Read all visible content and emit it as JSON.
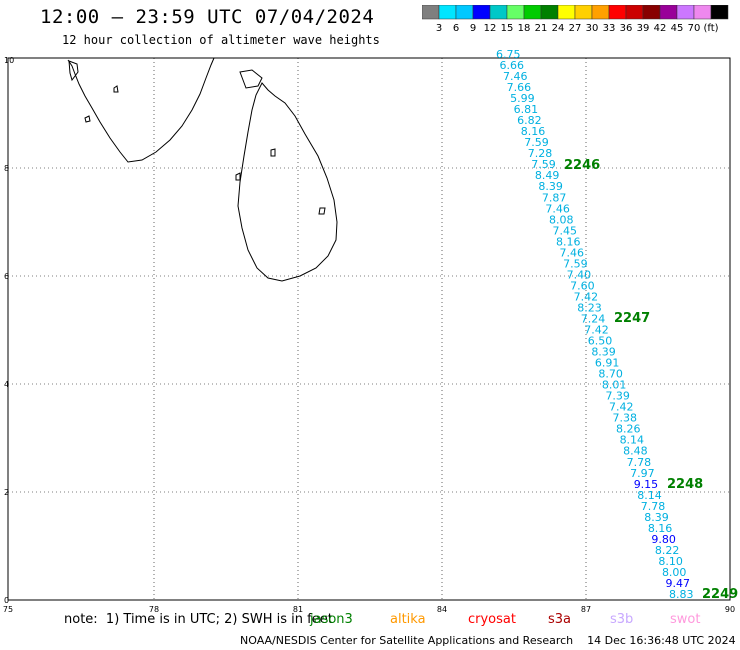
{
  "header": {
    "title": "12:00 – 23:59 UTC 07/04/2024",
    "subtitle": "12 hour collection of altimeter wave heights"
  },
  "colorbar": {
    "colors": [
      "#7f7f7f",
      "#00e5ff",
      "#00c8ff",
      "#0000ff",
      "#00c8c8",
      "#66ff66",
      "#00cc00",
      "#008000",
      "#ffff00",
      "#ffd000",
      "#ffa000",
      "#ff0000",
      "#cc0000",
      "#880000",
      "#990099",
      "#cc77ff",
      "#ee88ee",
      "#000000"
    ],
    "labels": [
      "3",
      "6",
      "9",
      "12",
      "15",
      "18",
      "21",
      "24",
      "27",
      "30",
      "33",
      "36",
      "39",
      "42",
      "45",
      "70",
      "(ft)"
    ]
  },
  "axes": {
    "x_ticks": [
      "75",
      "78",
      "81",
      "84",
      "87",
      "90"
    ],
    "y_ticks": [
      "10",
      "8",
      "6",
      "4",
      "2",
      "0"
    ]
  },
  "tracks": [
    {
      "label": "2246",
      "color": "#008000"
    },
    {
      "label": "2247",
      "color": "#008000"
    },
    {
      "label": "2248",
      "color": "#008000"
    },
    {
      "label": "2249",
      "color": "#008000"
    }
  ],
  "wave_heights": [
    {
      "v": "6.75",
      "c": "#00b0e0"
    },
    {
      "v": "6.66",
      "c": "#00b0e0"
    },
    {
      "v": "7.46",
      "c": "#00b0e0"
    },
    {
      "v": "7.66",
      "c": "#00b0e0"
    },
    {
      "v": "5.99",
      "c": "#00b0e0"
    },
    {
      "v": "6.81",
      "c": "#00b0e0"
    },
    {
      "v": "6.82",
      "c": "#00b0e0"
    },
    {
      "v": "8.16",
      "c": "#00b0e0"
    },
    {
      "v": "7.59",
      "c": "#00b0e0"
    },
    {
      "v": "7.28",
      "c": "#00b0e0"
    },
    {
      "v": "7.59",
      "c": "#00b0e0"
    },
    {
      "v": "8.49",
      "c": "#00b0e0"
    },
    {
      "v": "8.39",
      "c": "#00b0e0"
    },
    {
      "v": "7.87",
      "c": "#00b0e0"
    },
    {
      "v": "7.46",
      "c": "#00b0e0"
    },
    {
      "v": "8.08",
      "c": "#00b0e0"
    },
    {
      "v": "7.45",
      "c": "#00b0e0"
    },
    {
      "v": "8.16",
      "c": "#00b0e0"
    },
    {
      "v": "7.46",
      "c": "#00b0e0"
    },
    {
      "v": "7.59",
      "c": "#00b0e0"
    },
    {
      "v": "7.40",
      "c": "#00b0e0"
    },
    {
      "v": "7.60",
      "c": "#00b0e0"
    },
    {
      "v": "7.42",
      "c": "#00b0e0"
    },
    {
      "v": "8.23",
      "c": "#00b0e0"
    },
    {
      "v": "7.24",
      "c": "#00b0e0"
    },
    {
      "v": "7.42",
      "c": "#00b0e0"
    },
    {
      "v": "6.50",
      "c": "#00b0e0"
    },
    {
      "v": "8.39",
      "c": "#00b0e0"
    },
    {
      "v": "6.91",
      "c": "#00b0e0"
    },
    {
      "v": "8.70",
      "c": "#00b0e0"
    },
    {
      "v": "8.01",
      "c": "#00b0e0"
    },
    {
      "v": "7.39",
      "c": "#00b0e0"
    },
    {
      "v": "7.42",
      "c": "#00b0e0"
    },
    {
      "v": "7.38",
      "c": "#00b0e0"
    },
    {
      "v": "8.26",
      "c": "#00b0e0"
    },
    {
      "v": "8.14",
      "c": "#00b0e0"
    },
    {
      "v": "8.48",
      "c": "#00b0e0"
    },
    {
      "v": "7.78",
      "c": "#00b0e0"
    },
    {
      "v": "7.97",
      "c": "#00b0e0"
    },
    {
      "v": "9.15",
      "c": "#0000ff"
    },
    {
      "v": "8.14",
      "c": "#00b0e0"
    },
    {
      "v": "7.78",
      "c": "#00b0e0"
    },
    {
      "v": "8.39",
      "c": "#00b0e0"
    },
    {
      "v": "8.16",
      "c": "#00b0e0"
    },
    {
      "v": "9.80",
      "c": "#0000ff"
    },
    {
      "v": "8.22",
      "c": "#00b0e0"
    },
    {
      "v": "8.10",
      "c": "#00b0e0"
    },
    {
      "v": "8.00",
      "c": "#00b0e0"
    },
    {
      "v": "9.47",
      "c": "#0000ff"
    },
    {
      "v": "8.83",
      "c": "#00b0e0"
    }
  ],
  "note": {
    "text": "note:  1) Time is in UTC; 2) SWH is in feet"
  },
  "satellites": [
    {
      "name": "jason3",
      "color": "#008000"
    },
    {
      "name": "altika",
      "color": "#ff9900"
    },
    {
      "name": "cryosat",
      "color": "#ff0000"
    },
    {
      "name": "s3a",
      "color": "#aa0000"
    },
    {
      "name": "s3b",
      "color": "#c8a8ff"
    },
    {
      "name": "swot",
      "color": "#ff99dd"
    }
  ],
  "footer": {
    "text": "NOAA/NESDIS Center for Satellite Applications and Research    14 Dec 16:36:48 UTC 2024"
  }
}
